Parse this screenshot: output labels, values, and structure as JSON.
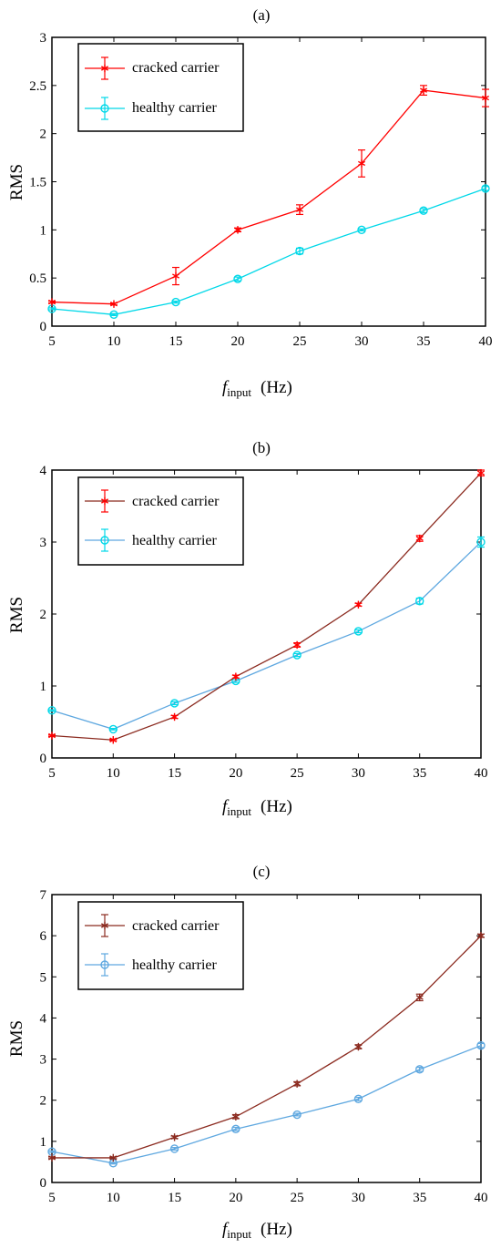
{
  "figure": {
    "panels": [
      {
        "title": "(a)",
        "ylabel": "RMS",
        "xlabel_main": "f",
        "xlabel_sub": "input",
        "xlabel_unit": "(Hz)"
      },
      {
        "title": "(b)",
        "ylabel": "RMS",
        "xlabel_main": "f",
        "xlabel_sub": "input",
        "xlabel_unit": "(Hz)"
      },
      {
        "title": "(c)",
        "ylabel": "RMS",
        "xlabel_main": "f",
        "xlabel_sub": "input",
        "xlabel_unit": "(Hz)"
      }
    ]
  },
  "chart_data": [
    {
      "type": "line",
      "title": "(a)",
      "xlabel": "finput (Hz)",
      "ylabel": "RMS",
      "x": [
        5,
        10,
        15,
        20,
        25,
        30,
        35,
        40
      ],
      "xlim": [
        5,
        40
      ],
      "ylim": [
        0,
        3
      ],
      "xticks": [
        "5",
        "10",
        "15",
        "20",
        "25",
        "30",
        "35",
        "40"
      ],
      "yticks": [
        "0",
        "0.5",
        "1",
        "1.5",
        "2",
        "2.5",
        "3"
      ],
      "grid": false,
      "legend_position": "top-left",
      "series": [
        {
          "name": "cracked carrier",
          "color": "#ff0000",
          "marker": "asterisk",
          "values": [
            0.25,
            0.23,
            0.52,
            1.0,
            1.21,
            1.69,
            2.45,
            2.37
          ],
          "errors": [
            0.01,
            0.01,
            0.09,
            0.02,
            0.05,
            0.14,
            0.05,
            0.09
          ]
        },
        {
          "name": "healthy carrier",
          "color": "#00d8e8",
          "marker": "circle",
          "values": [
            0.18,
            0.12,
            0.25,
            0.49,
            0.78,
            1.0,
            1.2,
            1.43
          ],
          "errors": [
            0.01,
            0.01,
            0.01,
            0.02,
            0.03,
            0.01,
            0.02,
            0.02
          ]
        }
      ]
    },
    {
      "type": "line",
      "title": "(b)",
      "xlabel": "finput (Hz)",
      "ylabel": "RMS",
      "x": [
        5,
        10,
        15,
        20,
        25,
        30,
        35,
        40
      ],
      "xlim": [
        5,
        40
      ],
      "ylim": [
        0,
        4
      ],
      "xticks": [
        "5",
        "10",
        "15",
        "20",
        "25",
        "30",
        "35",
        "40"
      ],
      "yticks": [
        "0",
        "1",
        "2",
        "3",
        "4"
      ],
      "grid": false,
      "legend_position": "top-left",
      "series": [
        {
          "name": "cracked carrier",
          "color": "#ff0000",
          "line_color": "#8b2a1f",
          "marker": "asterisk",
          "values": [
            0.31,
            0.25,
            0.57,
            1.13,
            1.57,
            2.13,
            3.05,
            3.96
          ],
          "errors": [
            0.01,
            0.01,
            0.02,
            0.02,
            0.03,
            0.02,
            0.04,
            0.04
          ]
        },
        {
          "name": "healthy carrier",
          "color": "#00d8e8",
          "line_color": "#5fa8e0",
          "marker": "circle",
          "values": [
            0.66,
            0.4,
            0.76,
            1.07,
            1.43,
            1.76,
            2.18,
            3.0
          ],
          "errors": [
            0.01,
            0.01,
            0.02,
            0.02,
            0.02,
            0.02,
            0.04,
            0.07
          ]
        }
      ]
    },
    {
      "type": "line",
      "title": "(c)",
      "xlabel": "finput (Hz)",
      "ylabel": "RMS",
      "x": [
        5,
        10,
        15,
        20,
        25,
        30,
        35,
        40
      ],
      "xlim": [
        5,
        40
      ],
      "ylim": [
        0,
        7
      ],
      "xticks": [
        "5",
        "10",
        "15",
        "20",
        "25",
        "30",
        "35",
        "40"
      ],
      "yticks": [
        "0",
        "1",
        "2",
        "3",
        "4",
        "5",
        "6",
        "7"
      ],
      "grid": false,
      "legend_position": "top-left",
      "series": [
        {
          "name": "cracked carrier",
          "color": "#8b2a1f",
          "marker": "asterisk",
          "values": [
            0.6,
            0.6,
            1.1,
            1.6,
            2.4,
            3.3,
            4.5,
            6.0
          ],
          "errors": [
            0.02,
            0.02,
            0.03,
            0.05,
            0.05,
            0.05,
            0.08,
            0.04
          ]
        },
        {
          "name": "healthy carrier",
          "color": "#5fa8e0",
          "marker": "circle",
          "values": [
            0.75,
            0.47,
            0.82,
            1.3,
            1.65,
            2.03,
            2.75,
            3.33
          ],
          "errors": [
            0.02,
            0.02,
            0.03,
            0.04,
            0.03,
            0.04,
            0.05,
            0.05
          ]
        }
      ]
    }
  ]
}
